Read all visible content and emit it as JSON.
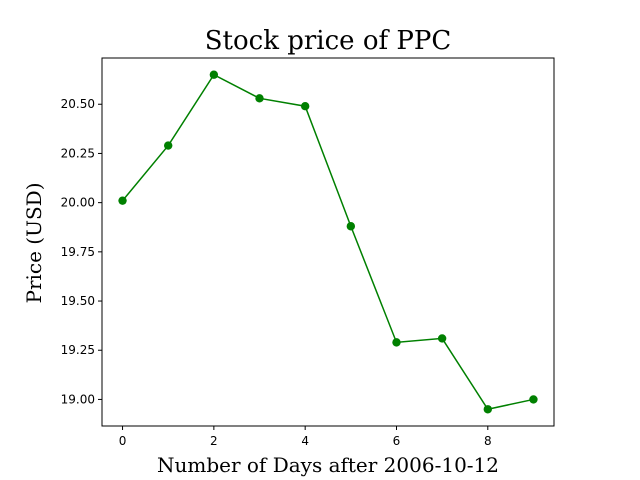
{
  "chart_data": {
    "type": "line",
    "title": "Stock price of PPC",
    "xlabel": "Number of Days after 2006-10-12",
    "ylabel": "Price (USD)",
    "x": [
      0,
      1,
      2,
      3,
      4,
      5,
      6,
      7,
      8,
      9
    ],
    "series": [
      {
        "values": [
          20.01,
          20.29,
          20.65,
          20.53,
          20.49,
          19.88,
          19.29,
          19.31,
          18.95,
          19.0
        ],
        "color": "#008000",
        "marker": "circle"
      }
    ],
    "xlim": [
      -0.45,
      9.45
    ],
    "ylim": [
      18.865,
      20.735
    ],
    "xticks": [
      0,
      2,
      4,
      6,
      8
    ],
    "xtick_labels": [
      "0",
      "2",
      "4",
      "6",
      "8"
    ],
    "yticks": [
      19.0,
      19.25,
      19.5,
      19.75,
      20.0,
      20.25,
      20.5
    ],
    "ytick_labels": [
      "19.00",
      "19.25",
      "19.50",
      "19.75",
      "20.00",
      "20.25",
      "20.50"
    ],
    "grid": false,
    "legend": false
  }
}
